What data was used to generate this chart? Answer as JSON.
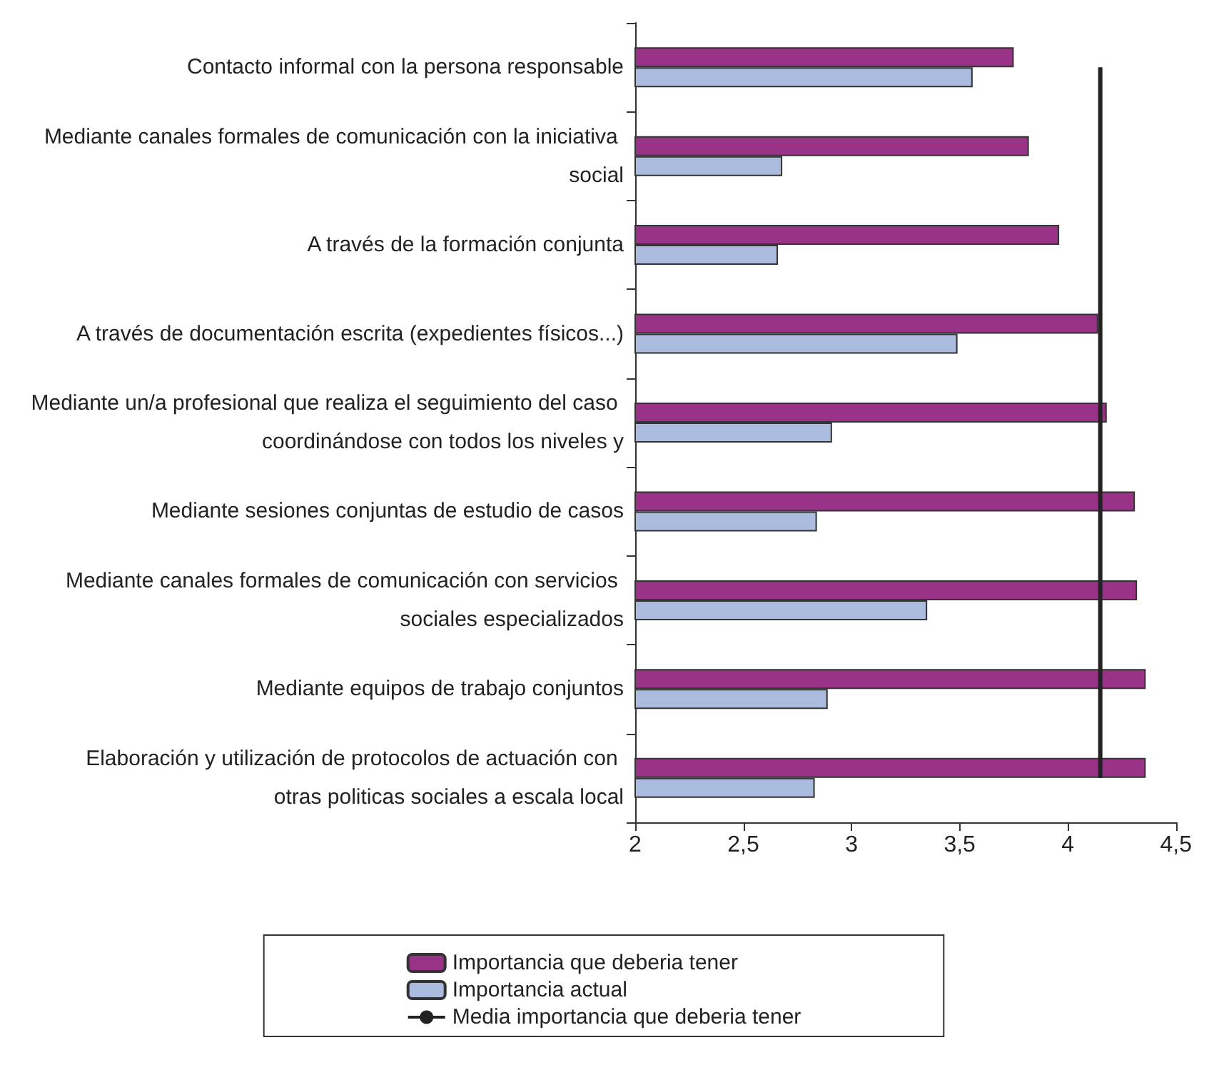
{
  "chart_data": {
    "type": "bar",
    "orientation": "horizontal",
    "categories": [
      "Contacto informal con la persona responsable",
      "Mediante canales formales de comunicación con la iniciativa social",
      "A través de la formación conjunta",
      "A través de documentación escrita (expedientes físicos...)",
      "Mediante un/a profesional que realiza el seguimiento del caso coordinándose con todos los niveles y",
      "Mediante sesiones conjuntas de estudio de casos",
      "Mediante canales formales de comunicación con servicios sociales especializados",
      "Mediante equipos de trabajo conjuntos",
      "Elaboración y utilización de protocolos de actuación con otras politicas sociales a escala local"
    ],
    "series": [
      {
        "name": "Importancia que deberia tener",
        "color": "#993388",
        "values": [
          3.75,
          3.82,
          3.96,
          4.14,
          4.18,
          4.31,
          4.32,
          4.36,
          4.36
        ]
      },
      {
        "name": "Importancia actual",
        "color": "#aabbdd",
        "values": [
          3.56,
          2.68,
          2.66,
          3.49,
          2.91,
          2.84,
          3.35,
          2.89,
          2.83
        ]
      }
    ],
    "ref_lines": [
      {
        "axis": "x",
        "value": 4.15,
        "label": "Media importancia que deberia tener",
        "color": "#222222"
      }
    ],
    "xlim": [
      2,
      4.5
    ],
    "xticks": [
      2,
      {
        "value": 2.5,
        "label": "2,5"
      },
      3,
      {
        "value": 3.5,
        "label": "3,5"
      },
      4,
      {
        "value": 4.5,
        "label": "4,5"
      }
    ],
    "grid": false,
    "legend": "bottom"
  }
}
